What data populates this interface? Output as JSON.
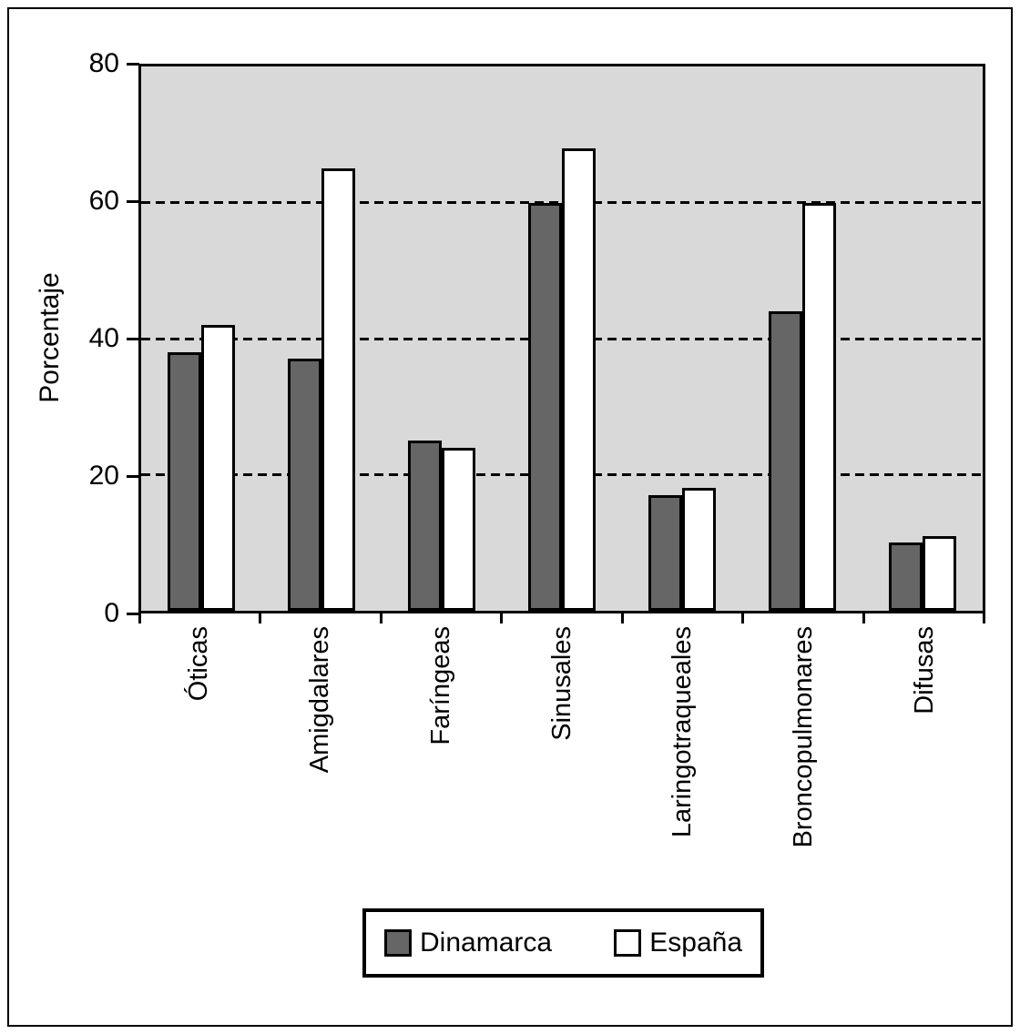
{
  "chart_data": {
    "type": "bar",
    "title": "",
    "ylabel": "Porcentaje",
    "xlabel": "",
    "ylim": [
      0,
      80
    ],
    "yticks": [
      0,
      20,
      40,
      60,
      80
    ],
    "gridlines": [
      20,
      40,
      60
    ],
    "grid_style": "horizontal dashed",
    "plot_background": "#d9d9d9",
    "legend_position": "bottom-center",
    "categories": [
      "Óticas",
      "Amigdalares",
      "Faríngeas",
      "Sinusales",
      "Laringotraqueales",
      "Broncopulmonares",
      "Difusas"
    ],
    "series": [
      {
        "name": "Dinamarca",
        "color": "#666666",
        "values": [
          38,
          37,
          25,
          60,
          17,
          44,
          10
        ]
      },
      {
        "name": "España",
        "color": "#ffffff",
        "values": [
          42,
          65,
          24,
          68,
          18,
          60,
          11
        ]
      }
    ]
  },
  "legend": {
    "items": [
      {
        "label": "Dinamarca",
        "color": "#666666"
      },
      {
        "label": "España",
        "color": "#ffffff"
      }
    ]
  }
}
